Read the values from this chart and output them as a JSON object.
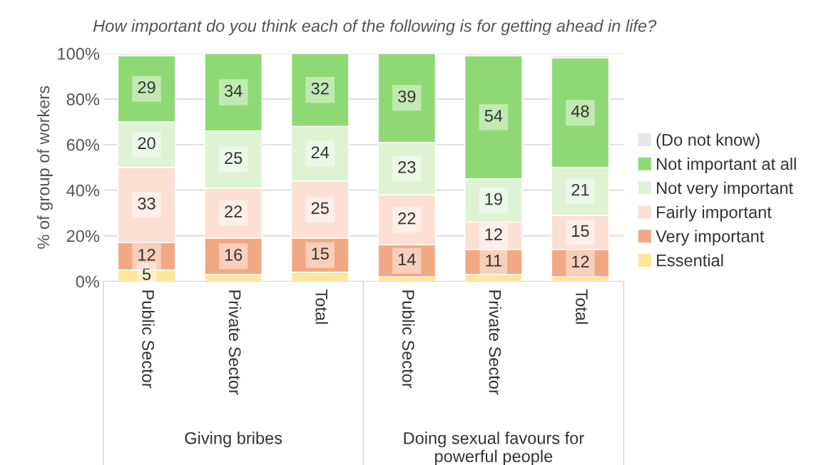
{
  "chart_data": {
    "type": "bar",
    "stacked": true,
    "title": "How important do you think each of the following is for getting ahead in life?",
    "ylabel": "% of group of workers",
    "categories": [
      "Public Sector",
      "Private Sector",
      "Total",
      "Public Sector",
      "Private Sector",
      "Total"
    ],
    "annotations": [
      "Giving bribes",
      "Doing sexual favours for\npowerful people"
    ],
    "series": [
      {
        "name": "Essential",
        "color": "#ffe699",
        "values": [
          5,
          3,
          4,
          2,
          3,
          2
        ],
        "value_labels": [
          "5",
          null,
          null,
          null,
          null,
          null
        ]
      },
      {
        "name": "Very important",
        "color": "#f2a883",
        "values": [
          12,
          16,
          15,
          14,
          11,
          12
        ],
        "value_labels": [
          "12",
          "16",
          "15",
          "14",
          "11",
          "12"
        ]
      },
      {
        "name": "Fairly important",
        "color": "#fce0d4",
        "values": [
          33,
          22,
          25,
          22,
          12,
          15
        ],
        "value_labels": [
          "33",
          "22",
          "25",
          "22",
          "12",
          "15"
        ]
      },
      {
        "name": "Not very important",
        "color": "#ddf3d4",
        "values": [
          20,
          25,
          24,
          23,
          19,
          21
        ],
        "value_labels": [
          "20",
          "25",
          "24",
          "23",
          "19",
          "21"
        ]
      },
      {
        "name": "Not important at all",
        "color": "#8fd975",
        "values": [
          29,
          34,
          32,
          39,
          54,
          48
        ],
        "value_labels": [
          "29",
          "34",
          "32",
          "39",
          "54",
          "48"
        ]
      },
      {
        "name": "(Do not know)",
        "color": "#e7e6e6",
        "values": [
          1,
          null,
          null,
          null,
          1,
          1
        ],
        "value_labels": [
          null,
          null,
          null,
          null,
          null,
          null
        ]
      }
    ],
    "ylim": [
      0,
      100
    ],
    "yticks": [
      {
        "value": 0,
        "label": "0%"
      },
      {
        "value": 20,
        "label": "20%"
      },
      {
        "value": 40,
        "label": "40%"
      },
      {
        "value": 60,
        "label": "60%"
      },
      {
        "value": 80,
        "label": "80%"
      },
      {
        "value": 100,
        "label": "100%"
      }
    ],
    "grid": "y",
    "legend": "right"
  }
}
